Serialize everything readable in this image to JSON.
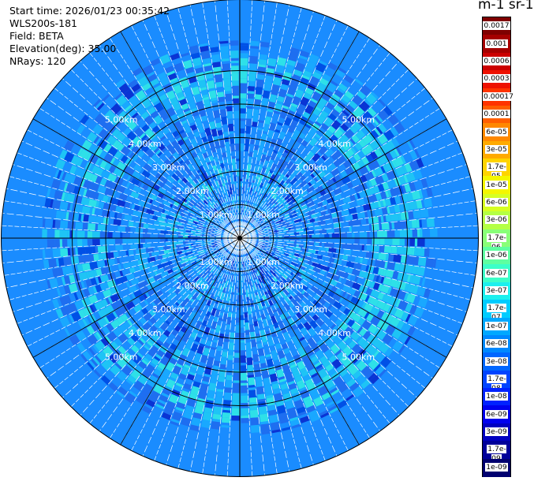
{
  "info": {
    "start_time": "Start time: 2026/01/23 00:35:42",
    "instrument": "WLS200s-181",
    "field": "Field: BETA",
    "elevation": "Elevation(deg): 35.00",
    "nrays": "NRays: 120"
  },
  "colorbar": {
    "title": "m-1 sr-1",
    "labels": [
      "0.0017",
      "0.001",
      "0.0006",
      "0.0003",
      "0.00017",
      "0.0001",
      "6e-05",
      "3e-05",
      "1.7e-05",
      "1e-05",
      "6e-06",
      "3e-06",
      "1.7e-06",
      "1e-06",
      "6e-07",
      "3e-07",
      "1.7e-07",
      "1e-07",
      "6e-08",
      "3e-08",
      "1.7e-08",
      "1e-08",
      "6e-09",
      "3e-09",
      "1.7e-09",
      "1e-09"
    ],
    "colors": [
      "#7f0000",
      "#a50000",
      "#cc0000",
      "#ee1100",
      "#ff3300",
      "#ff5e00",
      "#ff8800",
      "#ffaa00",
      "#ffd400",
      "#f4f700",
      "#d6ff22",
      "#b4ff44",
      "#88ff77",
      "#5effa0",
      "#3cffc8",
      "#1cf0ee",
      "#00ccff",
      "#00a8ff",
      "#0088ff",
      "#0066ff",
      "#0044ff",
      "#0022ff",
      "#0000ee",
      "#0000c0",
      "#00009a",
      "#000070"
    ]
  },
  "chart_data": {
    "type": "heatmap",
    "projection": "polar PPI",
    "field": "BETA",
    "n_rays": 120,
    "range_rings_km": [
      1,
      2,
      3,
      4,
      5
    ],
    "range_ring_labels": [
      "1.00km",
      "2.00km",
      "3.00km",
      "4.00km",
      "5.00km"
    ],
    "max_range_km": 5.7,
    "value_range": [
      1e-09,
      0.0017
    ],
    "dominant_values": [
      6e-08,
      1.7e-07,
      3e-08
    ],
    "grid": true
  }
}
